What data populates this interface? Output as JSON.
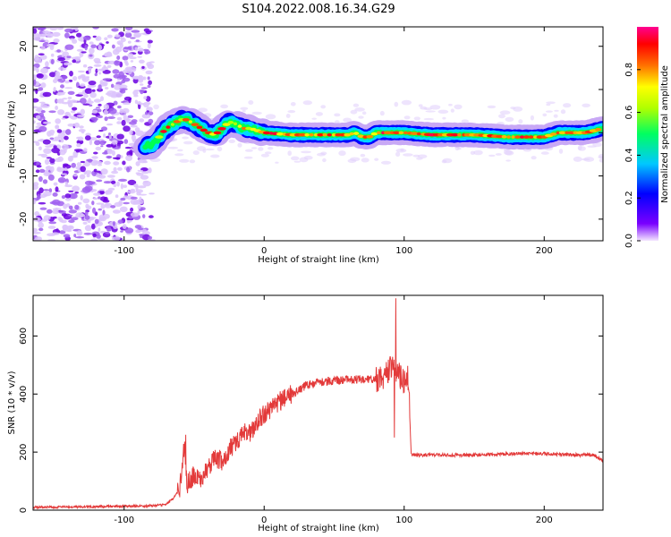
{
  "title": "S104.2022.008.16.34.G29",
  "colors": {
    "spectro_scatter": "#7a00e6",
    "ridge_low": "#0000ff",
    "ridge_mid": "#00ff00",
    "ridge_high": "#ff0000",
    "snr_line": "#e33a3a"
  },
  "chart_data": [
    {
      "type": "heatmap",
      "xlabel": "Height of straight line (km)",
      "ylabel": "Frequency (Hz)",
      "xlim": [
        -165,
        242
      ],
      "ylim": [
        -25,
        24.5
      ],
      "x_ticks": [
        -100,
        0,
        100,
        200
      ],
      "y_ticks": [
        -20,
        -10,
        0,
        10,
        20
      ],
      "colorbar": {
        "label": "Normalized spectral amplitude",
        "range": [
          0,
          1
        ],
        "ticks": [
          "0.0",
          "0.2",
          "0.4",
          "0.6",
          "0.8"
        ],
        "colormap": "rainbow (purple-blue-cyan-green-yellow-red-magenta)"
      },
      "noise_region": {
        "x_range": [
          -165,
          -80
        ],
        "description_level": 0.1
      },
      "ridge": {
        "x": [
          -85,
          -80,
          -75,
          -70,
          -65,
          -60,
          -55,
          -50,
          -45,
          -40,
          -35,
          -30,
          -25,
          -20,
          -15,
          -10,
          -5,
          0,
          20,
          40,
          60,
          65,
          70,
          75,
          80,
          100,
          120,
          150,
          175,
          200,
          210,
          220,
          230,
          242
        ],
        "frequency_hz": [
          -3,
          -3,
          -1,
          1,
          2,
          3,
          3,
          2,
          1,
          0,
          -0.5,
          1,
          2.5,
          2,
          1,
          1,
          0.5,
          0,
          -0.5,
          -0.5,
          -0.5,
          0,
          -1,
          -1,
          0,
          0,
          -0.5,
          -0.5,
          -1,
          -1,
          0,
          0,
          0,
          1
        ]
      }
    },
    {
      "type": "line",
      "xlabel": "Height of straight line (km)",
      "ylabel": "SNR (10 * v/v)",
      "xlim": [
        -165,
        242
      ],
      "ylim": [
        0,
        740
      ],
      "x_ticks": [
        -100,
        0,
        100,
        200
      ],
      "y_ticks": [
        0,
        200,
        400,
        600
      ],
      "series": [
        {
          "x": [
            -165,
            -120,
            -80,
            -70,
            -65,
            -60,
            -57,
            -55,
            -50,
            -45,
            -40,
            -35,
            -30,
            -25,
            -20,
            -15,
            -10,
            -5,
            0,
            10,
            20,
            30,
            40,
            50,
            60,
            70,
            80,
            85,
            88,
            90,
            93,
            95,
            98,
            100,
            103,
            105,
            120,
            150,
            180,
            200,
            220,
            235,
            242
          ],
          "y": [
            10,
            12,
            15,
            20,
            40,
            80,
            230,
            90,
            120,
            110,
            150,
            180,
            170,
            210,
            230,
            270,
            260,
            300,
            330,
            370,
            400,
            430,
            440,
            445,
            450,
            450,
            450,
            460,
            470,
            480,
            500,
            480,
            450,
            440,
            460,
            190,
            190,
            190,
            195,
            195,
            190,
            190,
            170
          ]
        }
      ],
      "spikes": [
        {
          "x": -56,
          "y": 260
        },
        {
          "x": 90,
          "y": 530
        },
        {
          "x": 94,
          "y": 730
        },
        {
          "x": 93,
          "y": 250
        }
      ]
    }
  ]
}
